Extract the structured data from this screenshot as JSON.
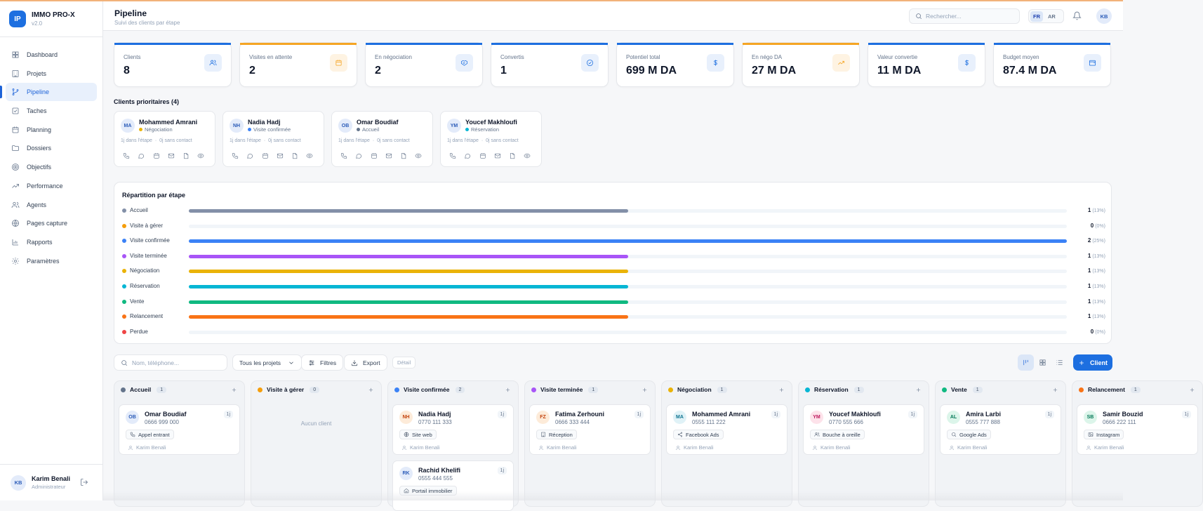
{
  "app": {
    "logo": "IP",
    "name": "IMMO PRO-X",
    "version": "v2.0"
  },
  "sidebar": {
    "items": [
      {
        "label": "Dashboard",
        "icon": "grid-icon"
      },
      {
        "label": "Projets",
        "icon": "building-icon"
      },
      {
        "label": "Pipeline",
        "icon": "branch-icon",
        "active": true
      },
      {
        "label": "Taches",
        "icon": "checkbox-icon"
      },
      {
        "label": "Planning",
        "icon": "calendar-icon"
      },
      {
        "label": "Dossiers",
        "icon": "folder-icon"
      },
      {
        "label": "Objectifs",
        "icon": "target-icon"
      },
      {
        "label": "Performance",
        "icon": "trend-icon"
      },
      {
        "label": "Agents",
        "icon": "users-icon"
      },
      {
        "label": "Pages capture",
        "icon": "globe-icon"
      },
      {
        "label": "Rapports",
        "icon": "chart-icon"
      },
      {
        "label": "Paramètres",
        "icon": "gear-icon"
      }
    ],
    "user": {
      "initials": "KB",
      "name": "Karim Benali",
      "role": "Administrateur"
    }
  },
  "header": {
    "title": "Pipeline",
    "subtitle": "Suivi des clients par étape",
    "search_placeholder": "Rechercher...",
    "lang_fr": "FR",
    "lang_ar": "AR",
    "avatar": "KB"
  },
  "stats": [
    {
      "label": "Clients",
      "value": "8",
      "accent": "#1d6fe0",
      "icon": "users-icon",
      "tint": "#e8f0fc"
    },
    {
      "label": "Visites en attente",
      "value": "2",
      "accent": "#f5a524",
      "icon": "calendar-icon",
      "tint": "#fef3e2"
    },
    {
      "label": "En négociation",
      "value": "2",
      "accent": "#1d6fe0",
      "icon": "handshake-icon",
      "tint": "#e8f0fc"
    },
    {
      "label": "Convertis",
      "value": "1",
      "accent": "#1d6fe0",
      "icon": "check-circle-icon",
      "tint": "#e8f0fc"
    },
    {
      "label": "Potentiel total",
      "value": "699 M DA",
      "accent": "#1d6fe0",
      "icon": "dollar-icon",
      "tint": "#e8f0fc"
    },
    {
      "label": "En négo DA",
      "value": "27 M DA",
      "accent": "#f5a524",
      "icon": "trend-up-icon",
      "tint": "#fef3e2"
    },
    {
      "label": "Valeur convertie",
      "value": "11 M DA",
      "accent": "#1d6fe0",
      "icon": "dollar-icon",
      "tint": "#e8f0fc"
    },
    {
      "label": "Budget moyen",
      "value": "87.4 M DA",
      "accent": "#1d6fe0",
      "icon": "wallet-icon",
      "tint": "#e8f0fc"
    }
  ],
  "priority": {
    "title": "Clients prioritaires (4)",
    "clients": [
      {
        "initials": "MA",
        "name": "Mohammed Amrani",
        "stage": "Négociation",
        "stage_color": "#eab308",
        "days": "1j dans l'étape",
        "contact": "0j sans contact"
      },
      {
        "initials": "NH",
        "name": "Nadia Hadj",
        "stage": "Visite confirmée",
        "stage_color": "#3b82f6",
        "days": "1j dans l'étape",
        "contact": "0j sans contact"
      },
      {
        "initials": "OB",
        "name": "Omar Boudiaf",
        "stage": "Accueil",
        "stage_color": "#64748b",
        "days": "1j dans l'étape",
        "contact": "0j sans contact"
      },
      {
        "initials": "YM",
        "name": "Youcef Makhloufi",
        "stage": "Réservation",
        "stage_color": "#06b6d4",
        "days": "1j dans l'étape",
        "contact": "0j sans contact"
      }
    ]
  },
  "distribution": {
    "title": "Répartition par étape",
    "rows": [
      {
        "label": "Accueil",
        "count": "1",
        "pct": "(13%)",
        "fraction": 0.5,
        "color": "#8390a8"
      },
      {
        "label": "Visite à gérer",
        "count": "0",
        "pct": "(0%)",
        "fraction": 0,
        "color": "#f59e0b"
      },
      {
        "label": "Visite confirmée",
        "count": "2",
        "pct": "(25%)",
        "fraction": 1.0,
        "color": "#3b82f6"
      },
      {
        "label": "Visite terminée",
        "count": "1",
        "pct": "(13%)",
        "fraction": 0.5,
        "color": "#a855f7"
      },
      {
        "label": "Négociation",
        "count": "1",
        "pct": "(13%)",
        "fraction": 0.5,
        "color": "#eab308"
      },
      {
        "label": "Réservation",
        "count": "1",
        "pct": "(13%)",
        "fraction": 0.5,
        "color": "#06b6d4"
      },
      {
        "label": "Vente",
        "count": "1",
        "pct": "(13%)",
        "fraction": 0.5,
        "color": "#10b981"
      },
      {
        "label": "Relancement",
        "count": "1",
        "pct": "(13%)",
        "fraction": 0.5,
        "color": "#f97316"
      },
      {
        "label": "Perdue",
        "count": "0",
        "pct": "(0%)",
        "fraction": 0,
        "color": "#ef4444"
      }
    ]
  },
  "toolbar": {
    "search_placeholder": "Nom, téléphone...",
    "projects_label": "Tous les projets",
    "filters_label": "Filtres",
    "export_label": "Export",
    "detail_label": "Détail",
    "add_client_label": "Client"
  },
  "kanban": {
    "empty_label": "Aucun client",
    "columns": [
      {
        "title": "Accueil",
        "count": "1",
        "color": "#64748b",
        "cards": [
          {
            "initials": "OB",
            "name": "Omar Boudiaf",
            "phone": "0666 999 000",
            "age": "1j",
            "source": "Appel entrant",
            "source_icon": "phone-icon",
            "agent": "Karim Benali",
            "av_bg": "#e3ebfa",
            "av_fg": "#2a5bb8"
          }
        ]
      },
      {
        "title": "Visite à gérer",
        "count": "0",
        "color": "#f59e0b",
        "cards": []
      },
      {
        "title": "Visite confirmée",
        "count": "2",
        "color": "#3b82f6",
        "cards": [
          {
            "initials": "NH",
            "name": "Nadia Hadj",
            "phone": "0770 111 333",
            "age": "1j",
            "source": "Site web",
            "source_icon": "globe-icon",
            "agent": "Karim Benali",
            "av_bg": "#fdebd9",
            "av_fg": "#c2410c"
          },
          {
            "initials": "RK",
            "name": "Rachid Khelifi",
            "phone": "0555 444 555",
            "age": "1j",
            "source": "Portail immobilier",
            "source_icon": "home-icon",
            "agent": "",
            "av_bg": "#e3ebfa",
            "av_fg": "#2a5bb8"
          }
        ]
      },
      {
        "title": "Visite terminée",
        "count": "1",
        "color": "#a855f7",
        "cards": [
          {
            "initials": "FZ",
            "name": "Fatima Zerhouni",
            "phone": "0666 333 444",
            "age": "1j",
            "source": "Réception",
            "source_icon": "building-icon",
            "agent": "Karim Benali",
            "av_bg": "#fdebd9",
            "av_fg": "#c2410c"
          }
        ]
      },
      {
        "title": "Négociation",
        "count": "1",
        "color": "#eab308",
        "cards": [
          {
            "initials": "MA",
            "name": "Mohammed Amrani",
            "phone": "0555 111 222",
            "age": "1j",
            "source": "Facebook Ads",
            "source_icon": "share-icon",
            "agent": "Karim Benali",
            "av_bg": "#e0f2f7",
            "av_fg": "#0e7490"
          }
        ]
      },
      {
        "title": "Réservation",
        "count": "1",
        "color": "#06b6d4",
        "cards": [
          {
            "initials": "YM",
            "name": "Youcef Makhloufi",
            "phone": "0770 555 666",
            "age": "1j",
            "source": "Bouche à oreille",
            "source_icon": "users-icon",
            "agent": "Karim Benali",
            "av_bg": "#fde2ea",
            "av_fg": "#be185d"
          }
        ]
      },
      {
        "title": "Vente",
        "count": "1",
        "color": "#10b981",
        "cards": [
          {
            "initials": "AL",
            "name": "Amira Larbi",
            "phone": "0555 777 888",
            "age": "1j",
            "source": "Google Ads",
            "source_icon": "search-icon",
            "agent": "Karim Benali",
            "av_bg": "#dcf5ea",
            "av_fg": "#047857"
          }
        ]
      },
      {
        "title": "Relancement",
        "count": "1",
        "color": "#f97316",
        "cards": [
          {
            "initials": "SB",
            "name": "Samir Bouzid",
            "phone": "0666 222 111",
            "age": "1j",
            "source": "Instagram",
            "source_icon": "image-icon",
            "agent": "Karim Benali",
            "av_bg": "#dcf5ea",
            "av_fg": "#047857"
          }
        ]
      }
    ]
  }
}
